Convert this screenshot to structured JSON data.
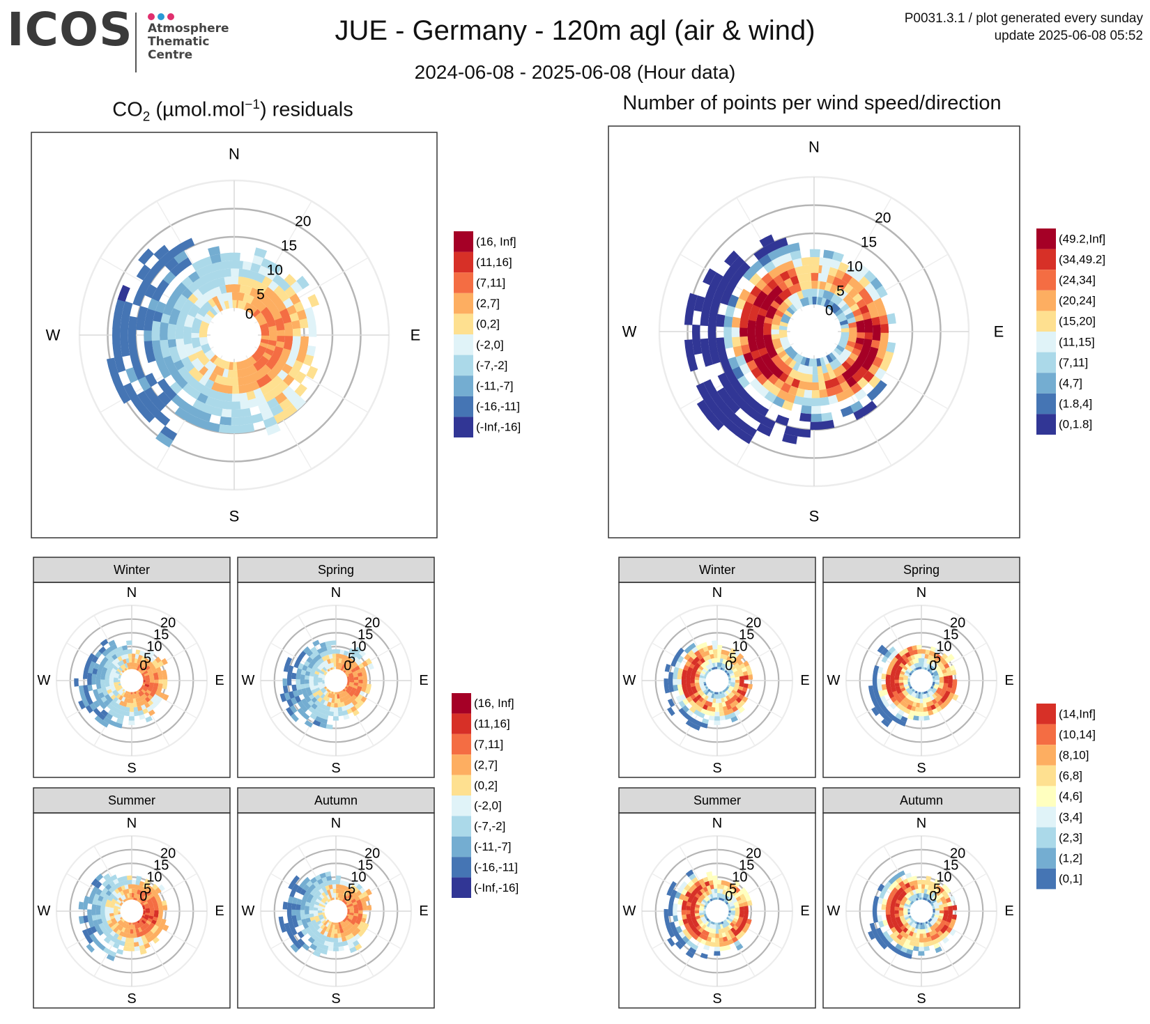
{
  "header": {
    "logo_text": "ICOS",
    "logo_subtitle_lines": [
      "Atmosphere",
      "Thematic",
      "Centre"
    ],
    "logo_dot_colors": [
      "#e0306e",
      "#2a9ad6",
      "#e0306e"
    ],
    "title": "JUE - Germany - 120m agl (air & wind)",
    "subtitle": "2024-06-08 - 2025-06-08 (Hour data)",
    "info_line1": "P0031.3.1 / plot generated every sunday",
    "info_line2": "update  2025-06-08 05:52"
  },
  "left_title": {
    "prefix": "CO",
    "sub": "2",
    "mid": " (µmol.mol",
    "sup": "−1",
    "suffix": ") residuals"
  },
  "right_title": "Number of points per wind speed/direction",
  "compass": [
    "N",
    "E",
    "S",
    "W"
  ],
  "speed_ticks": [
    "0",
    "5",
    "10",
    "15",
    "20"
  ],
  "legends": {
    "co2": {
      "labels": [
        "(16, Inf]",
        "(11,16]",
        "(7,11]",
        "(2,7]",
        "(0,2]",
        "(-2,0]",
        "(-7,-2]",
        "(-11,-7]",
        "(-16,-11]",
        "(-Inf,-16]"
      ],
      "colors": [
        "#a50026",
        "#d73027",
        "#f46d43",
        "#fdae61",
        "#fee090",
        "#e0f3f8",
        "#abd9e9",
        "#74add1",
        "#4575b4",
        "#313695"
      ]
    },
    "count_total": {
      "labels": [
        "(49.2,Inf]",
        "(34,49.2]",
        "(24,34]",
        "(20,24]",
        "(15,20]",
        "(11,15]",
        "(7,11]",
        "(4,7]",
        "(1.8,4]",
        "(0,1.8]"
      ],
      "colors": [
        "#a50026",
        "#d73027",
        "#f46d43",
        "#fdae61",
        "#fee090",
        "#e0f3f8",
        "#abd9e9",
        "#74add1",
        "#4575b4",
        "#313695"
      ]
    },
    "count_season": {
      "labels": [
        "(14,Inf]",
        "(10,14]",
        "(8,10]",
        "(6,8]",
        "(4,6]",
        "(3,4]",
        "(2,3]",
        "(1,2]",
        "(0,1]"
      ],
      "colors": [
        "#d73027",
        "#f46d43",
        "#fdae61",
        "#fee090",
        "#ffffbf",
        "#e0f3f8",
        "#abd9e9",
        "#74add1",
        "#4575b4"
      ]
    }
  },
  "seasons": [
    "Winter",
    "Spring",
    "Summer",
    "Autumn"
  ],
  "chart_data": [
    {
      "type": "heatmap",
      "subtype": "polar",
      "panel": "co2_residuals_all",
      "radius_units": "wind speed",
      "r_max": 25,
      "theta": "wind direction",
      "legend": "co2"
    },
    {
      "type": "heatmap",
      "subtype": "polar",
      "panel": "count_all",
      "radius_units": "wind speed",
      "r_max": 25,
      "theta": "wind direction",
      "legend": "count_total"
    },
    {
      "type": "heatmap",
      "subtype": "polar",
      "panel": "co2_residuals_seasonal",
      "facets": [
        "Winter",
        "Spring",
        "Summer",
        "Autumn"
      ],
      "legend": "co2"
    },
    {
      "type": "heatmap",
      "subtype": "polar",
      "panel": "count_seasonal",
      "facets": [
        "Winter",
        "Spring",
        "Summer",
        "Autumn"
      ],
      "legend": "count_season"
    }
  ]
}
